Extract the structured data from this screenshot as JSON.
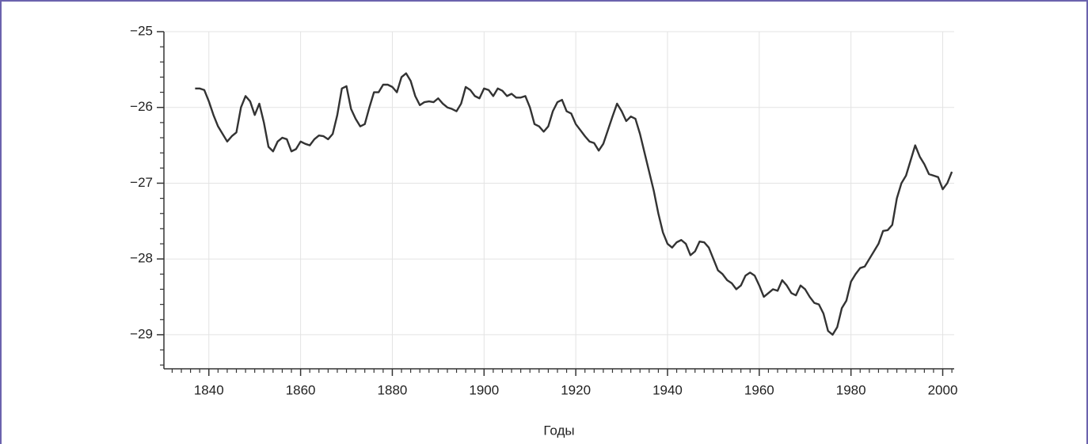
{
  "chart_data": {
    "type": "line",
    "x_label": "Годы",
    "color": "#333333",
    "grid": true,
    "x": [
      1837,
      1838,
      1839,
      1840,
      1841,
      1842,
      1843,
      1844,
      1845,
      1846,
      1847,
      1848,
      1849,
      1850,
      1851,
      1852,
      1853,
      1854,
      1855,
      1856,
      1857,
      1858,
      1859,
      1860,
      1861,
      1862,
      1863,
      1864,
      1865,
      1866,
      1867,
      1868,
      1869,
      1870,
      1871,
      1872,
      1873,
      1874,
      1875,
      1876,
      1877,
      1878,
      1879,
      1880,
      1881,
      1882,
      1883,
      1884,
      1885,
      1886,
      1887,
      1888,
      1889,
      1890,
      1891,
      1892,
      1893,
      1894,
      1895,
      1896,
      1897,
      1898,
      1899,
      1900,
      1901,
      1902,
      1903,
      1904,
      1905,
      1906,
      1907,
      1908,
      1909,
      1910,
      1911,
      1912,
      1913,
      1914,
      1915,
      1916,
      1917,
      1918,
      1919,
      1920,
      1921,
      1922,
      1923,
      1924,
      1925,
      1926,
      1927,
      1928,
      1929,
      1930,
      1931,
      1932,
      1933,
      1934,
      1935,
      1936,
      1937,
      1938,
      1939,
      1940,
      1941,
      1942,
      1943,
      1944,
      1945,
      1946,
      1947,
      1948,
      1949,
      1950,
      1951,
      1952,
      1953,
      1954,
      1955,
      1956,
      1957,
      1958,
      1959,
      1960,
      1961,
      1962,
      1963,
      1964,
      1965,
      1966,
      1967,
      1968,
      1969,
      1970,
      1971,
      1972,
      1973,
      1974,
      1975,
      1976,
      1977,
      1978,
      1979,
      1980,
      1981,
      1982,
      1983,
      1984,
      1985,
      1986,
      1987,
      1988,
      1989,
      1990,
      1991,
      1992,
      1993,
      1994,
      1995,
      1996,
      1997,
      1998,
      1999,
      2000,
      2001,
      2002
    ],
    "values": [
      -25.75,
      -25.75,
      -25.77,
      -25.92,
      -26.1,
      -26.25,
      -26.35,
      -26.45,
      -26.38,
      -26.33,
      -26.0,
      -25.85,
      -25.92,
      -26.1,
      -25.95,
      -26.2,
      -26.52,
      -26.58,
      -26.45,
      -26.4,
      -26.42,
      -26.58,
      -26.55,
      -26.45,
      -26.48,
      -26.5,
      -26.42,
      -26.37,
      -26.38,
      -26.42,
      -26.35,
      -26.1,
      -25.75,
      -25.72,
      -26.02,
      -26.15,
      -26.25,
      -26.22,
      -26.0,
      -25.8,
      -25.8,
      -25.7,
      -25.7,
      -25.73,
      -25.8,
      -25.6,
      -25.55,
      -25.65,
      -25.85,
      -25.97,
      -25.93,
      -25.92,
      -25.93,
      -25.88,
      -25.95,
      -26.0,
      -26.02,
      -26.05,
      -25.95,
      -25.73,
      -25.77,
      -25.85,
      -25.88,
      -25.75,
      -25.77,
      -25.85,
      -25.75,
      -25.78,
      -25.85,
      -25.82,
      -25.87,
      -25.87,
      -25.85,
      -26.0,
      -26.22,
      -26.25,
      -26.32,
      -26.25,
      -26.05,
      -25.93,
      -25.9,
      -26.05,
      -26.08,
      -26.22,
      -26.3,
      -26.38,
      -26.45,
      -26.47,
      -26.57,
      -26.48,
      -26.3,
      -26.12,
      -25.95,
      -26.05,
      -26.18,
      -26.12,
      -26.15,
      -26.35,
      -26.6,
      -26.85,
      -27.1,
      -27.4,
      -27.65,
      -27.8,
      -27.85,
      -27.78,
      -27.75,
      -27.8,
      -27.95,
      -27.9,
      -27.77,
      -27.78,
      -27.85,
      -28.0,
      -28.15,
      -28.2,
      -28.28,
      -28.32,
      -28.4,
      -28.35,
      -28.22,
      -28.18,
      -28.22,
      -28.35,
      -28.5,
      -28.45,
      -28.4,
      -28.42,
      -28.28,
      -28.35,
      -28.45,
      -28.48,
      -28.35,
      -28.4,
      -28.5,
      -28.58,
      -28.6,
      -28.72,
      -28.95,
      -29.0,
      -28.9,
      -28.65,
      -28.55,
      -28.3,
      -28.2,
      -28.12,
      -28.1,
      -28.0,
      -27.9,
      -27.8,
      -27.63,
      -27.62,
      -27.55,
      -27.2,
      -27.0,
      -26.9,
      -26.7,
      -26.5,
      -26.65,
      -26.75,
      -26.88,
      -26.9,
      -26.92,
      -27.08,
      -27.0,
      -26.85
    ],
    "xlim": [
      1830.2,
      2002.5
    ],
    "ylim": [
      -29.45,
      -25
    ],
    "xticks": [
      1840,
      1860,
      1880,
      1900,
      1920,
      1940,
      1960,
      1980,
      2000
    ],
    "yticks": [
      {
        "value": -29,
        "label": "−29"
      },
      {
        "value": -28,
        "label": "−28"
      },
      {
        "value": -27,
        "label": "−27"
      },
      {
        "value": -26,
        "label": "−26"
      },
      {
        "value": -25,
        "label": "−25"
      }
    ],
    "x_minor_ticks": [
      1832,
      1834,
      1836,
      1838,
      1842,
      1844,
      1846,
      1848,
      1850,
      1852,
      1854,
      1856,
      1858,
      1862,
      1864,
      1866,
      1868,
      1870,
      1872,
      1874,
      1876,
      1878,
      1882,
      1884,
      1886,
      1888,
      1890,
      1892,
      1894,
      1896,
      1898,
      1902,
      1904,
      1906,
      1908,
      1910,
      1912,
      1914,
      1916,
      1918,
      1922,
      1924,
      1926,
      1928,
      1930,
      1932,
      1934,
      1936,
      1938,
      1942,
      1944,
      1946,
      1948,
      1950,
      1952,
      1954,
      1956,
      1958,
      1962,
      1964,
      1966,
      1968,
      1970,
      1972,
      1974,
      1976,
      1978,
      1982,
      1984,
      1986,
      1988,
      1990,
      1992,
      1994,
      1996,
      1998,
      2002
    ],
    "y_minor_ticks": [
      -29.4,
      -29.2,
      -28.8,
      -28.6,
      -28.4,
      -28.2,
      -27.8,
      -27.6,
      -27.4,
      -27.2,
      -26.8,
      -26.6,
      -26.4,
      -26.2,
      -25.8,
      -25.6,
      -25.4,
      -25.2
    ]
  }
}
